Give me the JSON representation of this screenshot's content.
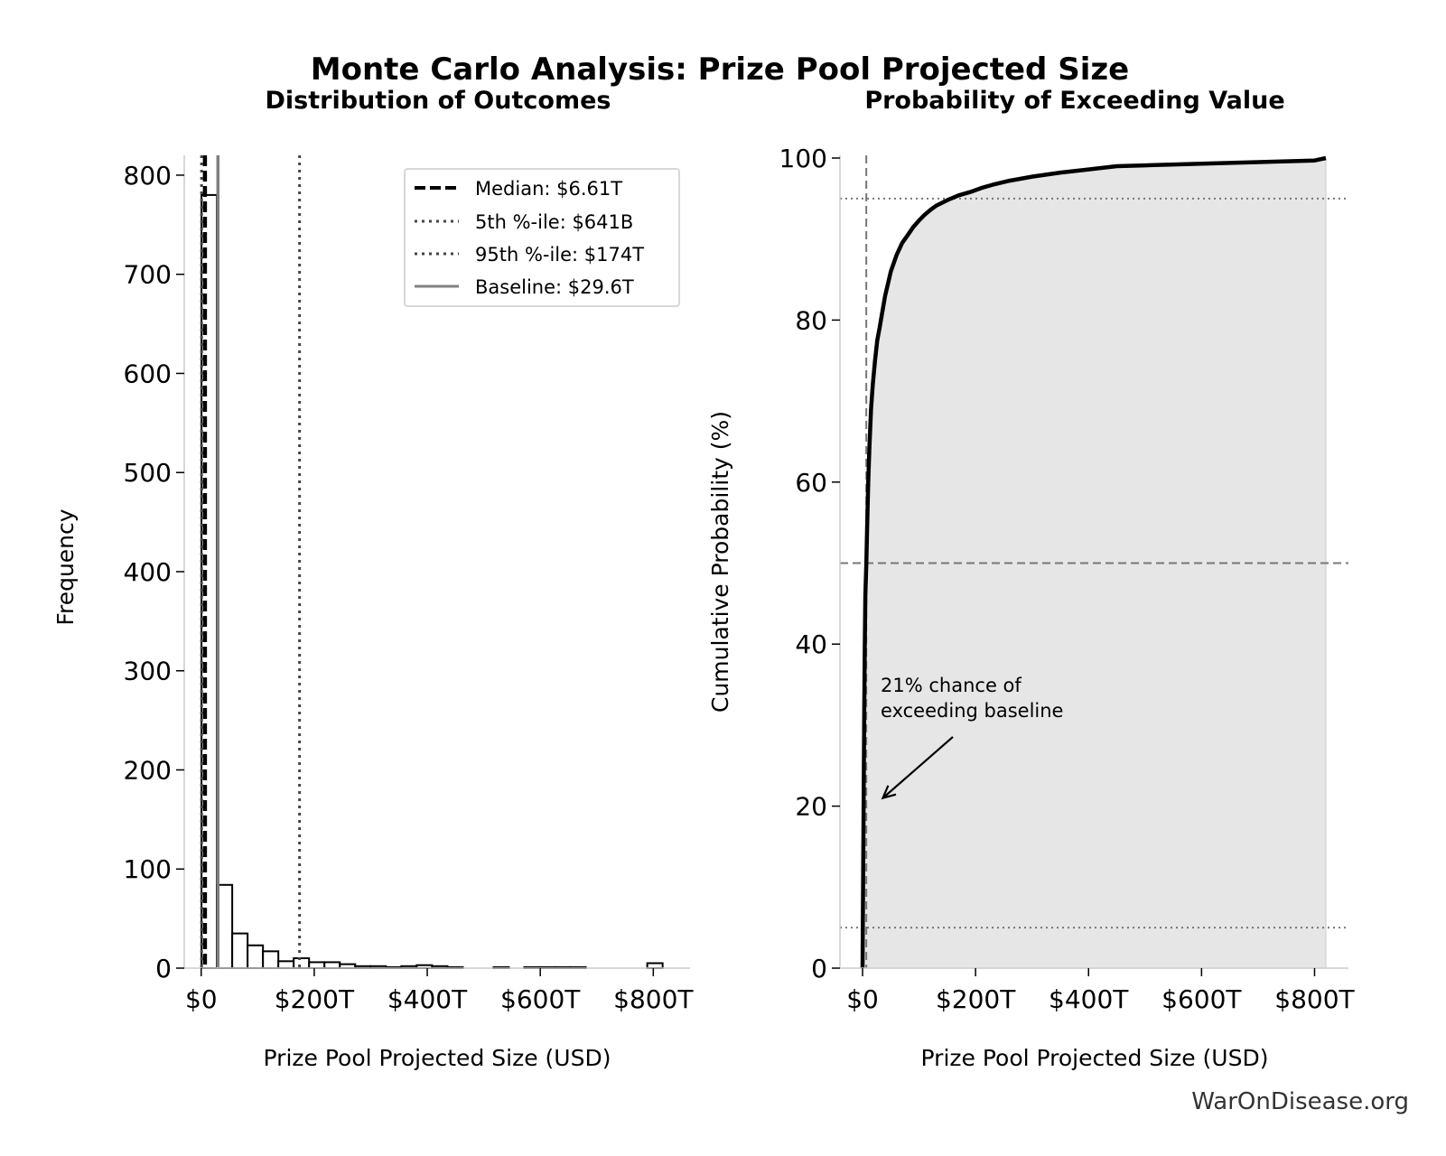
{
  "figure": {
    "title": "Monte Carlo Analysis: Prize Pool Projected Size",
    "credit": "WarOnDisease.org"
  },
  "chart_data": [
    {
      "type": "histogram",
      "title": "Distribution of Outcomes",
      "xlabel": "Prize Pool Projected Size (USD)",
      "ylabel": "Frequency",
      "xlim": [
        -30,
        865
      ],
      "ylim": [
        0,
        820
      ],
      "xticks": [
        {
          "value": 0,
          "label": "$0"
        },
        {
          "value": 200,
          "label": "$200T"
        },
        {
          "value": 400,
          "label": "$400T"
        },
        {
          "value": 600,
          "label": "$600T"
        },
        {
          "value": 800,
          "label": "$800T"
        }
      ],
      "yticks": [
        0,
        100,
        200,
        300,
        400,
        500,
        600,
        700,
        800
      ],
      "bin_width": 27.2,
      "bins": [
        {
          "start": 0.5,
          "count": 780
        },
        {
          "start": 27.7,
          "count": 84
        },
        {
          "start": 54.9,
          "count": 35
        },
        {
          "start": 82.1,
          "count": 23
        },
        {
          "start": 109.3,
          "count": 17
        },
        {
          "start": 136.5,
          "count": 7
        },
        {
          "start": 163.7,
          "count": 10
        },
        {
          "start": 190.9,
          "count": 6
        },
        {
          "start": 218.1,
          "count": 6
        },
        {
          "start": 245.3,
          "count": 4
        },
        {
          "start": 272.5,
          "count": 2
        },
        {
          "start": 299.7,
          "count": 2
        },
        {
          "start": 326.9,
          "count": 1
        },
        {
          "start": 354.1,
          "count": 2
        },
        {
          "start": 381.3,
          "count": 3
        },
        {
          "start": 408.5,
          "count": 2
        },
        {
          "start": 435.7,
          "count": 1
        },
        {
          "start": 462.9,
          "count": 0
        },
        {
          "start": 490.1,
          "count": 0
        },
        {
          "start": 517.3,
          "count": 1
        },
        {
          "start": 544.5,
          "count": 0
        },
        {
          "start": 571.7,
          "count": 1
        },
        {
          "start": 598.9,
          "count": 1
        },
        {
          "start": 626.1,
          "count": 1
        },
        {
          "start": 653.3,
          "count": 1
        },
        {
          "start": 680.5,
          "count": 0
        },
        {
          "start": 707.7,
          "count": 0
        },
        {
          "start": 734.9,
          "count": 0
        },
        {
          "start": 762.1,
          "count": 0
        },
        {
          "start": 789.3,
          "count": 5
        }
      ],
      "reference_lines": [
        {
          "name": "median",
          "label": "Median: $6.61T",
          "value": 6.61,
          "style": "dashed",
          "color": "#000000"
        },
        {
          "name": "p5",
          "label": "5th %-ile: $641B",
          "value": 0.641,
          "style": "dotted",
          "color": "#444444"
        },
        {
          "name": "p95",
          "label": "95th %-ile: $174T",
          "value": 174,
          "style": "dotted",
          "color": "#444444"
        },
        {
          "name": "baseline",
          "label": "Baseline: $29.6T",
          "value": 29.6,
          "style": "solid",
          "color": "#808080"
        }
      ],
      "legend_position": "top-right"
    },
    {
      "type": "line",
      "title": "Probability of Exceeding Value",
      "xlabel": "Prize Pool Projected Size (USD)",
      "ylabel": "Cumulative Probability (%)",
      "xlim": [
        -40,
        860
      ],
      "ylim": [
        0,
        100
      ],
      "xticks": [
        {
          "value": 0,
          "label": "$0"
        },
        {
          "value": 200,
          "label": "$200T"
        },
        {
          "value": 400,
          "label": "$400T"
        },
        {
          "value": 600,
          "label": "$600T"
        },
        {
          "value": 800,
          "label": "$800T"
        }
      ],
      "yticks": [
        0,
        20,
        40,
        60,
        80,
        100
      ],
      "x": [
        0,
        1,
        2,
        3,
        4,
        5,
        6.6,
        8,
        10,
        12,
        15,
        18,
        22,
        26,
        30,
        35,
        40,
        45,
        50,
        60,
        70,
        80,
        90,
        100,
        110,
        120,
        130,
        150,
        170,
        190,
        210,
        230,
        260,
        300,
        350,
        400,
        450,
        500,
        600,
        700,
        800,
        820
      ],
      "y": [
        0,
        10,
        22,
        32,
        40,
        46,
        50,
        54,
        60,
        64,
        69,
        72,
        75,
        77.5,
        79,
        81,
        83,
        84.5,
        86,
        88,
        89.5,
        90.5,
        91.5,
        92.3,
        93,
        93.6,
        94.1,
        94.8,
        95.4,
        95.8,
        96.3,
        96.7,
        97.2,
        97.7,
        98.2,
        98.6,
        99,
        99.1,
        99.3,
        99.5,
        99.7,
        100
      ],
      "hlines": [
        {
          "value": 95,
          "style": "dotted"
        },
        {
          "value": 50,
          "style": "dashed"
        },
        {
          "value": 5,
          "style": "dotted"
        }
      ],
      "vline": {
        "value": 6.61,
        "style": "dashed"
      },
      "annotation": {
        "line1": "21% chance of",
        "line2": "exceeding baseline",
        "point_x": 29.6,
        "point_y": 21,
        "text_x": 32,
        "text_y": 31
      }
    }
  ]
}
